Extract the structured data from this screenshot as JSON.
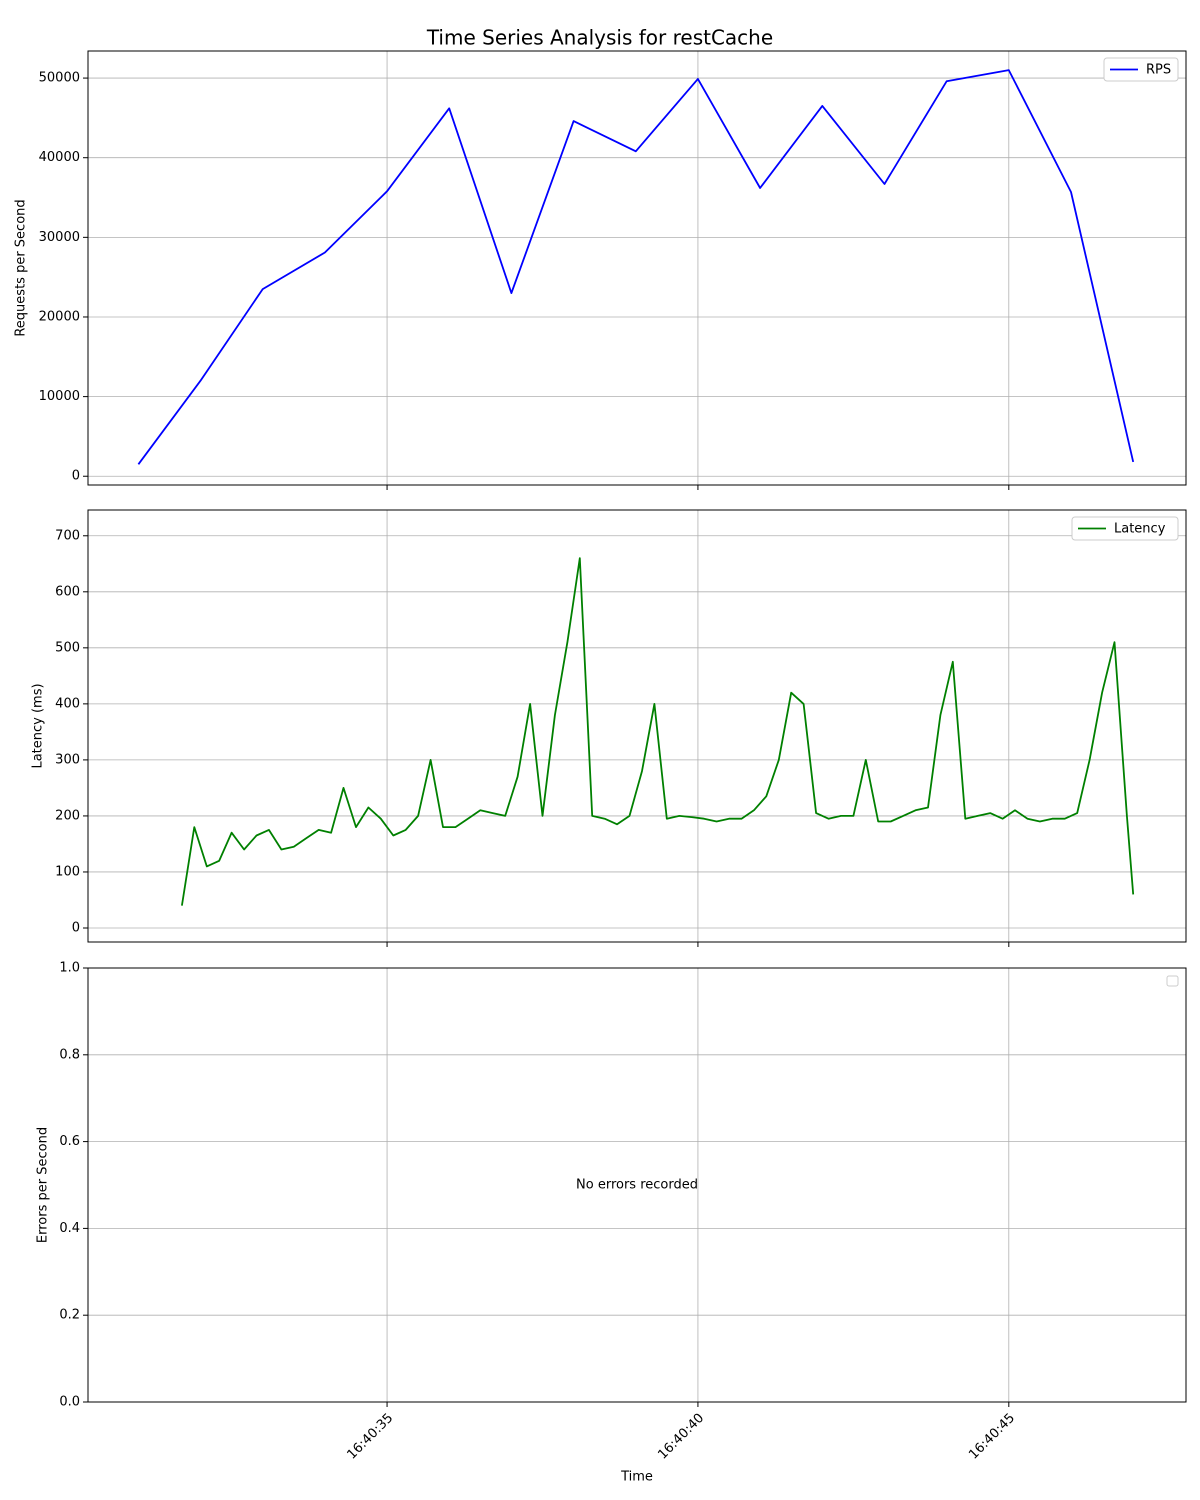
{
  "title": "Time Series Analysis for restCache",
  "chart_data": [
    {
      "type": "line",
      "ylabel": "Requests per Second",
      "x": [
        "16:40:31",
        "16:40:32",
        "16:40:33",
        "16:40:34",
        "16:40:35",
        "16:40:36",
        "16:40:37",
        "16:40:38",
        "16:40:39",
        "16:40:40",
        "16:40:41",
        "16:40:42",
        "16:40:43",
        "16:40:44",
        "16:40:45",
        "16:40:46",
        "16:40:47"
      ],
      "series": [
        {
          "name": "RPS",
          "color": "#0000ff",
          "values": [
            1500,
            12000,
            23500,
            28100,
            35800,
            46200,
            23000,
            44600,
            40800,
            49900,
            36200,
            46500,
            36700,
            49600,
            51000,
            35700,
            1800
          ]
        }
      ],
      "xlim": [
        "16:40:30.19",
        "16:40:47.85"
      ],
      "xticks": [
        "16:40:35",
        "16:40:40",
        "16:40:45"
      ],
      "ylim": [
        -1100,
        53400
      ],
      "yticks": [
        0,
        10000,
        20000,
        30000,
        40000,
        50000
      ],
      "grid": true,
      "legend": "upper right"
    },
    {
      "type": "line",
      "ylabel": "Latency (ms)",
      "x": [
        "16:40:31.7",
        "16:40:31.9",
        "16:40:32.1",
        "16:40:32.3",
        "16:40:32.5",
        "16:40:32.7",
        "16:40:32.9",
        "16:40:33.1",
        "16:40:33.3",
        "16:40:33.5",
        "16:40:33.7",
        "16:40:33.9",
        "16:40:34.1",
        "16:40:34.3",
        "16:40:34.5",
        "16:40:34.7",
        "16:40:34.9",
        "16:40:35.1",
        "16:40:35.3",
        "16:40:35.5",
        "16:40:35.7",
        "16:40:35.9",
        "16:40:36.1",
        "16:40:36.3",
        "16:40:36.5",
        "16:40:36.7",
        "16:40:36.9",
        "16:40:37.1",
        "16:40:37.3",
        "16:40:37.5",
        "16:40:37.7",
        "16:40:37.9",
        "16:40:38.1",
        "16:40:38.3",
        "16:40:38.5",
        "16:40:38.7",
        "16:40:38.9",
        "16:40:39.1",
        "16:40:39.3",
        "16:40:39.5",
        "16:40:39.7",
        "16:40:39.9",
        "16:40:40.1",
        "16:40:40.3",
        "16:40:40.5",
        "16:40:40.7",
        "16:40:40.9",
        "16:40:41.1",
        "16:40:41.3",
        "16:40:41.5",
        "16:40:41.7",
        "16:40:41.9",
        "16:40:42.1",
        "16:40:42.3",
        "16:40:42.5",
        "16:40:42.7",
        "16:40:42.9",
        "16:40:43.1",
        "16:40:43.3",
        "16:40:43.5",
        "16:40:43.7",
        "16:40:43.9",
        "16:40:44.1",
        "16:40:44.3",
        "16:40:44.5",
        "16:40:44.7",
        "16:40:44.9",
        "16:40:45.1",
        "16:40:45.3",
        "16:40:45.5",
        "16:40:45.7",
        "16:40:45.9",
        "16:40:46.1",
        "16:40:46.3",
        "16:40:46.5",
        "16:40:46.7",
        "16:40:46.9",
        "16:40:47.0"
      ],
      "series": [
        {
          "name": "Latency",
          "color": "#008000",
          "values": [
            40,
            180,
            110,
            120,
            170,
            140,
            165,
            175,
            140,
            145,
            160,
            175,
            170,
            250,
            180,
            215,
            195,
            165,
            175,
            200,
            300,
            180,
            180,
            195,
            210,
            205,
            200,
            270,
            400,
            200,
            380,
            510,
            660,
            200,
            195,
            185,
            200,
            280,
            400,
            195,
            200,
            198,
            195,
            190,
            195,
            195,
            210,
            235,
            300,
            420,
            400,
            205,
            195,
            200,
            200,
            300,
            190,
            190,
            200,
            210,
            215,
            380,
            475,
            195,
            200,
            205,
            195,
            210,
            195,
            190,
            195,
            195,
            205,
            300,
            420,
            510,
            200,
            60
          ]
        }
      ],
      "xlim": [
        "16:40:30.19",
        "16:40:47.85"
      ],
      "xticks": [
        "16:40:35",
        "16:40:40",
        "16:40:45"
      ],
      "ylim": [
        -25,
        746
      ],
      "yticks": [
        0,
        100,
        200,
        300,
        400,
        500,
        600,
        700
      ],
      "grid": true,
      "legend": "upper right"
    },
    {
      "type": "empty",
      "ylabel": "Errors per Second",
      "xlabel": "Time",
      "annotation": "No errors recorded",
      "xlim": [
        "16:40:30.19",
        "16:40:47.85"
      ],
      "xticks": [
        "16:40:35",
        "16:40:40",
        "16:40:45"
      ],
      "ylim": [
        0,
        1
      ],
      "yticks": [
        {
          "value": 0,
          "label": "0.0"
        },
        {
          "value": 0.2,
          "label": "0.2"
        },
        {
          "value": 0.4,
          "label": "0.4"
        },
        {
          "value": 0.6,
          "label": "0.6"
        },
        {
          "value": 0.8,
          "label": "0.8"
        },
        {
          "value": 1,
          "label": "1.0"
        }
      ],
      "grid": true
    }
  ]
}
